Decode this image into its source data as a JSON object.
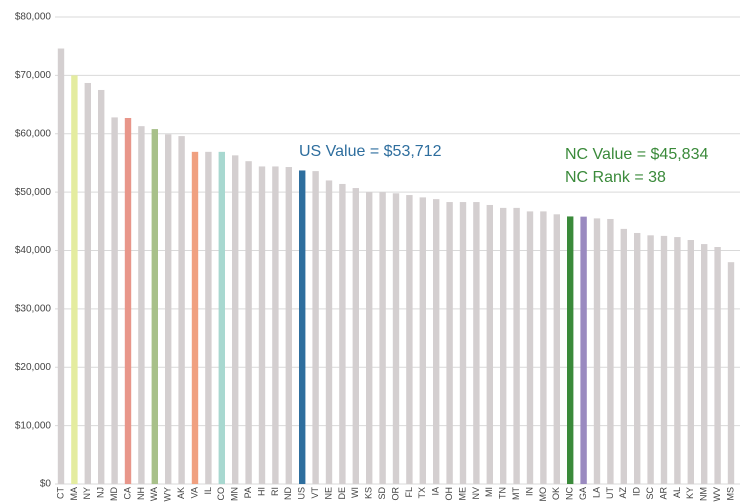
{
  "chart_data": {
    "type": "bar",
    "categories": [
      "CT",
      "MA",
      "NY",
      "NJ",
      "MD",
      "CA",
      "NH",
      "WA",
      "WY",
      "AK",
      "VA",
      "IL",
      "CO",
      "MN",
      "PA",
      "HI",
      "RI",
      "ND",
      "US",
      "VT",
      "NE",
      "DE",
      "WI",
      "KS",
      "SD",
      "OR",
      "FL",
      "TX",
      "IA",
      "OH",
      "ME",
      "NV",
      "MI",
      "TN",
      "MT",
      "IN",
      "MO",
      "OK",
      "NC",
      "GA",
      "LA",
      "UT",
      "AZ",
      "ID",
      "SC",
      "AR",
      "AL",
      "KY",
      "NM",
      "WV",
      "MS"
    ],
    "values": [
      74600,
      70000,
      68700,
      67500,
      62800,
      62700,
      61300,
      60800,
      59900,
      59600,
      56900,
      56900,
      56900,
      56300,
      55300,
      54400,
      54400,
      54300,
      53712,
      53600,
      52000,
      51400,
      50700,
      50000,
      50000,
      49800,
      49500,
      49100,
      48800,
      48300,
      48300,
      48300,
      47800,
      47300,
      47300,
      46700,
      46700,
      46200,
      45834,
      45800,
      45500,
      45400,
      43700,
      43000,
      42600,
      42500,
      42300,
      41800,
      41100,
      40600,
      38000
    ],
    "colors": [
      "#d4cfd0",
      "#e4eca0",
      "#d4cfd0",
      "#d4cfd0",
      "#d4cfd0",
      "#e8968a",
      "#d4cfd0",
      "#a8c08a",
      "#d4cfd0",
      "#d4cfd0",
      "#f0a080",
      "#d4cfd0",
      "#a8d8d0",
      "#d4cfd0",
      "#d4cfd0",
      "#d4cfd0",
      "#d4cfd0",
      "#d4cfd0",
      "#2e6e9e",
      "#d4cfd0",
      "#d4cfd0",
      "#d4cfd0",
      "#d4cfd0",
      "#d4cfd0",
      "#d4cfd0",
      "#d4cfd0",
      "#d4cfd0",
      "#d4cfd0",
      "#d4cfd0",
      "#d4cfd0",
      "#d4cfd0",
      "#d4cfd0",
      "#d4cfd0",
      "#d4cfd0",
      "#d4cfd0",
      "#d4cfd0",
      "#d4cfd0",
      "#d4cfd0",
      "#3a8a3a",
      "#9a8ac0",
      "#d4cfd0",
      "#d4cfd0",
      "#d4cfd0",
      "#d4cfd0",
      "#d4cfd0",
      "#d4cfd0",
      "#d4cfd0",
      "#d4cfd0",
      "#d4cfd0",
      "#d4cfd0",
      "#d4cfd0"
    ],
    "ylim": [
      0,
      80000
    ],
    "yticks": [
      {
        "value": 0,
        "label": "$0"
      },
      {
        "value": 10000,
        "label": "$10,000"
      },
      {
        "value": 20000,
        "label": "$20,000"
      },
      {
        "value": 30000,
        "label": "$30,000"
      },
      {
        "value": 40000,
        "label": "$40,000"
      },
      {
        "value": 50000,
        "label": "$50,000"
      },
      {
        "value": 60000,
        "label": "$60,000"
      },
      {
        "value": 70000,
        "label": "$70,000"
      },
      {
        "value": 80000,
        "label": "$80,000"
      }
    ],
    "grid": true,
    "annotations": [
      {
        "text": "US Value = $53,712",
        "color": "#2e6e9e"
      },
      {
        "text": "NC Value = $45,834",
        "color": "#3a8a3a"
      },
      {
        "text": "NC Rank = 38",
        "color": "#3a8a3a"
      }
    ]
  }
}
